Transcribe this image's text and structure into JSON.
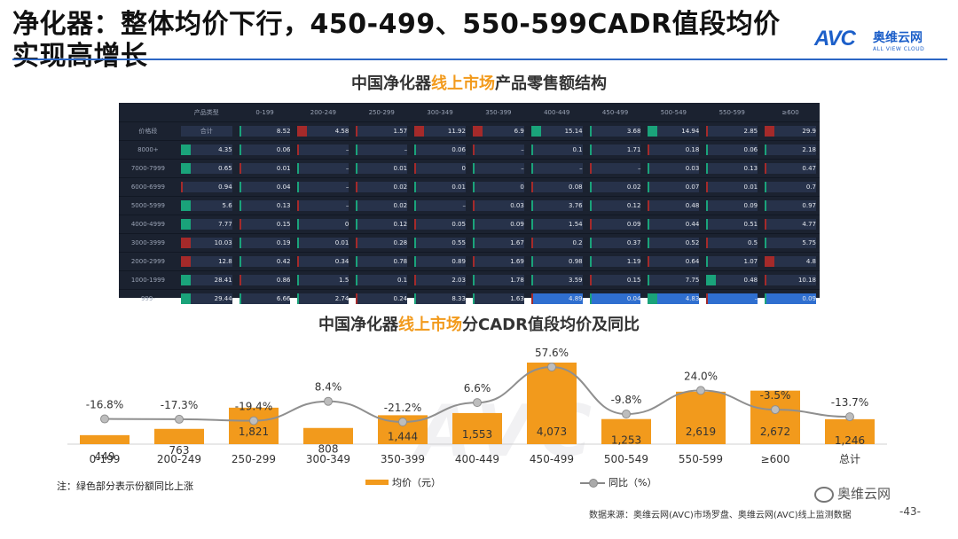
{
  "header": {
    "title": "净化器：整体均价下行，450-499、550-599CADR值段均价实现高增长",
    "logo_en": "AVC",
    "logo_cn": "奥维云网",
    "logo_sub": "ALL VIEW CLOUD"
  },
  "colors": {
    "accent_orange": "#f29a1c",
    "rule_blue": "#2c66c4",
    "heat_bg": "#1b2230",
    "growth_green": "#1aa37a",
    "decline_red": "#a52a2a"
  },
  "heatmap": {
    "title_pre": "中国净化器",
    "title_hl": "线上市场",
    "title_post": "产品零售额结构",
    "corner_label": "产品类型",
    "row_header_label": "价格段",
    "columns": [
      "",
      "0-199",
      "200-249",
      "250-299",
      "300-349",
      "350-399",
      "400-449",
      "450-499",
      "500-549",
      "550-599",
      "≥600"
    ],
    "rows": [
      {
        "label": "",
        "values": [
          "合计",
          "8.52",
          "4.58",
          "1.57",
          "11.92",
          "6.9",
          "15.14",
          "3.68",
          "14.94",
          "2.85",
          "29.9"
        ]
      },
      {
        "label": "8000+",
        "values": [
          "4.35",
          "0.06",
          "–",
          "–",
          "0.06",
          "–",
          "0.1",
          "1.71",
          "0.18",
          "0.06",
          "2.18"
        ]
      },
      {
        "label": "7000-7999",
        "values": [
          "0.65",
          "0.01",
          "–",
          "0.01",
          "0",
          "–",
          "–",
          "–",
          "0.03",
          "0.13",
          "0.47"
        ]
      },
      {
        "label": "6000-6999",
        "values": [
          "0.94",
          "0.04",
          "–",
          "0.02",
          "0.01",
          "0",
          "0.08",
          "0.02",
          "0.07",
          "0.01",
          "0.7"
        ]
      },
      {
        "label": "5000-5999",
        "values": [
          "5.6",
          "0.13",
          "–",
          "0.02",
          "–",
          "0.03",
          "3.76",
          "0.12",
          "0.48",
          "0.09",
          "0.97"
        ]
      },
      {
        "label": "4000-4999",
        "values": [
          "7.77",
          "0.15",
          "0",
          "0.12",
          "0.05",
          "0.09",
          "1.54",
          "0.09",
          "0.44",
          "0.51",
          "4.77"
        ]
      },
      {
        "label": "3000-3999",
        "values": [
          "10.03",
          "0.19",
          "0.01",
          "0.28",
          "0.55",
          "1.67",
          "0.2",
          "0.37",
          "0.52",
          "0.5",
          "5.75"
        ]
      },
      {
        "label": "2000-2999",
        "values": [
          "12.8",
          "0.42",
          "0.34",
          "0.78",
          "0.89",
          "1.69",
          "0.98",
          "1.19",
          "0.64",
          "1.07",
          "4.8"
        ]
      },
      {
        "label": "1000-1999",
        "values": [
          "28.41",
          "0.86",
          "1.5",
          "0.1",
          "2.03",
          "1.78",
          "3.59",
          "0.15",
          "7.75",
          "0.48",
          "10.18"
        ]
      },
      {
        "label": "999-",
        "values": [
          "29.44",
          "6.66",
          "2.74",
          "0.24",
          "8.33",
          "1.63",
          "4.89",
          "0.04",
          "4.83",
          "–",
          "0.09"
        ]
      }
    ]
  },
  "chart_title": {
    "pre": "中国净化器",
    "hl": "线上市场",
    "post": "分CADR值段均价及同比"
  },
  "chart_data": {
    "type": "bar",
    "categories": [
      "0-199",
      "200-249",
      "250-299",
      "300-349",
      "350-399",
      "400-449",
      "450-499",
      "500-549",
      "550-599",
      "≥600",
      "总计"
    ],
    "series": [
      {
        "name": "均价（元）",
        "type": "bar",
        "values": [
          449,
          763,
          1821,
          808,
          1444,
          1553,
          4073,
          1253,
          2619,
          2672,
          1246
        ]
      },
      {
        "name": "同比（%）",
        "type": "line",
        "values": [
          -16.8,
          -17.3,
          -19.4,
          8.4,
          -21.2,
          6.6,
          57.6,
          -9.8,
          24.0,
          -3.5,
          -13.7
        ],
        "labels": [
          "-16.8%",
          "-17.3%",
          "-19.4%",
          "8.4%",
          "-21.2%",
          "6.6%",
          "57.6%",
          "-9.8%",
          "24.0%",
          "-3.5%",
          "-13.7%"
        ]
      }
    ],
    "bar_labels": [
      "449",
      "763",
      "1,821",
      "808",
      "1,444",
      "1,553",
      "4,073",
      "1,253",
      "2,619",
      "2,672",
      "1,246"
    ],
    "legend_position": "bottom"
  },
  "footer": {
    "note": "注：绿色部分表示份额同比上涨",
    "source": "数据来源：奥维云网(AVC)市场罗盘、奥维云网(AVC)线上监测数据",
    "page": "-43-",
    "wechat": "奥维云网"
  }
}
